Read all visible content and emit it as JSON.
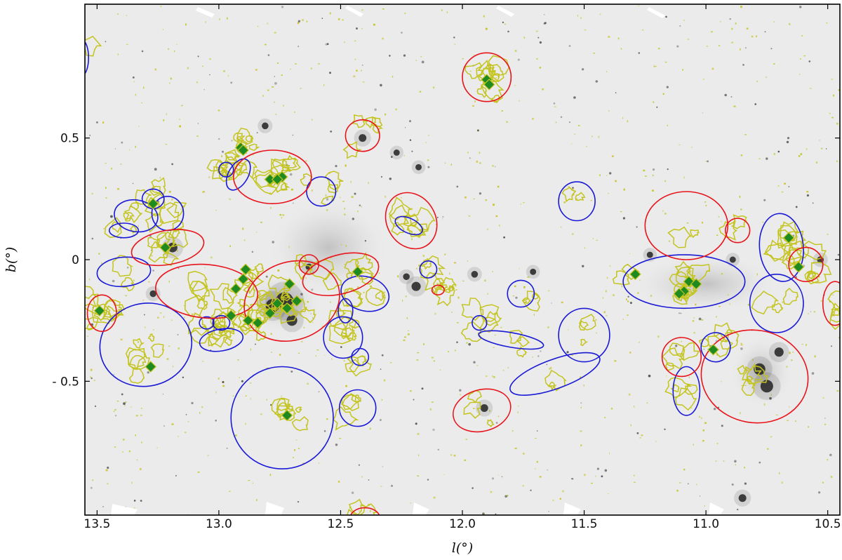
{
  "chart_data": {
    "type": "scatter",
    "xlabel": "l(°)",
    "ylabel": "b(°)",
    "xlim": [
      13.55,
      10.45
    ],
    "ylim": [
      -1.05,
      1.05
    ],
    "x_ticks": [
      "13.5",
      "13.0",
      "12.5",
      "12.0",
      "11.5",
      "11.0",
      "10.5"
    ],
    "x_tick_values": [
      13.5,
      13.0,
      12.5,
      12.0,
      11.5,
      11.0,
      10.5
    ],
    "y_ticks": [
      "0.5",
      "0",
      "- 0.5"
    ],
    "y_tick_values": [
      0.5,
      0.0,
      -0.5
    ],
    "colors": {
      "red_ellipse": "#e8141b",
      "blue_ellipse": "#1a1ad6",
      "contour": "#c4c420",
      "marker": "#1f8a1f",
      "background": "#ebebeb",
      "source": "#222222"
    },
    "red_ellipses": [
      {
        "l": 12.78,
        "b": 0.34,
        "a": 0.16,
        "c": 0.11,
        "angle": 0
      },
      {
        "l": 12.7,
        "b": -0.17,
        "a": 0.2,
        "c": 0.16,
        "angle": 20
      },
      {
        "l": 11.9,
        "b": 0.75,
        "a": 0.1,
        "c": 0.1,
        "angle": 0
      },
      {
        "l": 12.41,
        "b": 0.51,
        "a": 0.07,
        "c": 0.065,
        "angle": 0
      },
      {
        "l": 12.21,
        "b": 0.16,
        "a": 0.1,
        "c": 0.12,
        "angle": 30
      },
      {
        "l": 13.21,
        "b": 0.05,
        "a": 0.15,
        "c": 0.07,
        "angle": 10
      },
      {
        "l": 13.05,
        "b": -0.13,
        "a": 0.21,
        "c": 0.11,
        "angle": -5
      },
      {
        "l": 12.5,
        "b": -0.06,
        "a": 0.16,
        "c": 0.08,
        "angle": 15
      },
      {
        "l": 12.63,
        "b": -0.02,
        "a": 0.04,
        "c": 0.04,
        "angle": 0
      },
      {
        "l": 12.1,
        "b": -0.125,
        "a": 0.025,
        "c": 0.02,
        "angle": 0
      },
      {
        "l": 13.48,
        "b": -0.22,
        "a": 0.06,
        "c": 0.075,
        "angle": 0
      },
      {
        "l": 11.92,
        "b": -0.62,
        "a": 0.12,
        "c": 0.085,
        "angle": 15
      },
      {
        "l": 11.08,
        "b": 0.14,
        "a": 0.17,
        "c": 0.14,
        "angle": 0
      },
      {
        "l": 10.87,
        "b": 0.12,
        "a": 0.05,
        "c": 0.05,
        "angle": 0
      },
      {
        "l": 10.59,
        "b": -0.02,
        "a": 0.07,
        "c": 0.07,
        "angle": 0
      },
      {
        "l": 10.47,
        "b": -0.18,
        "a": 0.05,
        "c": 0.09,
        "angle": 0
      },
      {
        "l": 10.8,
        "b": -0.48,
        "a": 0.22,
        "c": 0.19,
        "angle": -10
      },
      {
        "l": 11.1,
        "b": -0.4,
        "a": 0.08,
        "c": 0.08,
        "angle": 0
      },
      {
        "l": 12.4,
        "b": -1.06,
        "a": 0.06,
        "c": 0.04,
        "angle": 0
      }
    ],
    "blue_ellipses": [
      {
        "l": 13.56,
        "b": 0.83,
        "a": 0.025,
        "c": 0.07,
        "angle": 0
      },
      {
        "l": 12.97,
        "b": 0.37,
        "a": 0.03,
        "c": 0.03,
        "angle": 0
      },
      {
        "l": 12.92,
        "b": 0.35,
        "a": 0.07,
        "c": 0.04,
        "angle": 60
      },
      {
        "l": 12.58,
        "b": 0.28,
        "a": 0.06,
        "c": 0.06,
        "angle": 0
      },
      {
        "l": 13.27,
        "b": 0.25,
        "a": 0.045,
        "c": 0.04,
        "angle": 0
      },
      {
        "l": 13.34,
        "b": 0.18,
        "a": 0.09,
        "c": 0.065,
        "angle": -10
      },
      {
        "l": 13.21,
        "b": 0.19,
        "a": 0.065,
        "c": 0.07,
        "angle": 0
      },
      {
        "l": 13.39,
        "b": 0.12,
        "a": 0.06,
        "c": 0.03,
        "angle": 0
      },
      {
        "l": 13.39,
        "b": -0.05,
        "a": 0.11,
        "c": 0.06,
        "angle": 5
      },
      {
        "l": 13.3,
        "b": -0.35,
        "a": 0.19,
        "c": 0.17,
        "angle": 15
      },
      {
        "l": 13.05,
        "b": -0.26,
        "a": 0.03,
        "c": 0.025,
        "angle": 0
      },
      {
        "l": 12.99,
        "b": -0.26,
        "a": 0.035,
        "c": 0.03,
        "angle": 0
      },
      {
        "l": 12.99,
        "b": -0.33,
        "a": 0.09,
        "c": 0.045,
        "angle": 10
      },
      {
        "l": 12.74,
        "b": -0.65,
        "a": 0.21,
        "c": 0.21,
        "angle": 0
      },
      {
        "l": 12.48,
        "b": -0.21,
        "a": 0.03,
        "c": 0.05,
        "angle": 0
      },
      {
        "l": 12.49,
        "b": -0.32,
        "a": 0.08,
        "c": 0.085,
        "angle": 0
      },
      {
        "l": 12.42,
        "b": -0.4,
        "a": 0.035,
        "c": 0.035,
        "angle": 0
      },
      {
        "l": 12.4,
        "b": -0.14,
        "a": 0.1,
        "c": 0.07,
        "angle": -15
      },
      {
        "l": 12.43,
        "b": -0.61,
        "a": 0.075,
        "c": 0.075,
        "angle": 0
      },
      {
        "l": 12.22,
        "b": 0.14,
        "a": 0.06,
        "c": 0.03,
        "angle": -25
      },
      {
        "l": 12.14,
        "b": -0.04,
        "a": 0.035,
        "c": 0.035,
        "angle": 0
      },
      {
        "l": 11.93,
        "b": -0.26,
        "a": 0.03,
        "c": 0.03,
        "angle": 0
      },
      {
        "l": 11.8,
        "b": -0.33,
        "a": 0.135,
        "c": 0.03,
        "angle": -10
      },
      {
        "l": 11.76,
        "b": -0.14,
        "a": 0.055,
        "c": 0.055,
        "angle": 0
      },
      {
        "l": 11.53,
        "b": 0.24,
        "a": 0.075,
        "c": 0.08,
        "angle": 0
      },
      {
        "l": 11.5,
        "b": -0.31,
        "a": 0.105,
        "c": 0.11,
        "angle": 0
      },
      {
        "l": 11.62,
        "b": -0.47,
        "a": 0.195,
        "c": 0.06,
        "angle": 20
      },
      {
        "l": 11.09,
        "b": -0.09,
        "a": 0.25,
        "c": 0.11,
        "angle": 0
      },
      {
        "l": 11.08,
        "b": -0.54,
        "a": 0.055,
        "c": 0.1,
        "angle": 0
      },
      {
        "l": 10.96,
        "b": -0.36,
        "a": 0.06,
        "c": 0.06,
        "angle": -20
      },
      {
        "l": 10.69,
        "b": 0.05,
        "a": 0.09,
        "c": 0.14,
        "angle": 5
      },
      {
        "l": 10.71,
        "b": -0.18,
        "a": 0.11,
        "c": 0.12,
        "angle": 0
      }
    ],
    "green_markers": [
      {
        "l": 11.9,
        "b": 0.74
      },
      {
        "l": 11.89,
        "b": 0.72
      },
      {
        "l": 12.91,
        "b": 0.46
      },
      {
        "l": 12.9,
        "b": 0.45
      },
      {
        "l": 12.79,
        "b": 0.33
      },
      {
        "l": 12.74,
        "b": 0.34
      },
      {
        "l": 12.76,
        "b": 0.33
      },
      {
        "l": 13.27,
        "b": 0.23
      },
      {
        "l": 13.22,
        "b": 0.05
      },
      {
        "l": 12.9,
        "b": -0.08
      },
      {
        "l": 12.89,
        "b": -0.04
      },
      {
        "l": 12.93,
        "b": -0.12
      },
      {
        "l": 12.95,
        "b": -0.23
      },
      {
        "l": 12.88,
        "b": -0.25
      },
      {
        "l": 12.84,
        "b": -0.26
      },
      {
        "l": 12.79,
        "b": -0.22
      },
      {
        "l": 12.76,
        "b": -0.18
      },
      {
        "l": 12.71,
        "b": -0.1
      },
      {
        "l": 12.72,
        "b": -0.2
      },
      {
        "l": 12.68,
        "b": -0.17
      },
      {
        "l": 12.43,
        "b": -0.05
      },
      {
        "l": 13.49,
        "b": -0.21
      },
      {
        "l": 13.28,
        "b": -0.44
      },
      {
        "l": 12.72,
        "b": -0.64
      },
      {
        "l": 11.29,
        "b": -0.06
      },
      {
        "l": 11.07,
        "b": -0.09
      },
      {
        "l": 11.04,
        "b": -0.1
      },
      {
        "l": 11.09,
        "b": -0.13
      },
      {
        "l": 11.11,
        "b": -0.14
      },
      {
        "l": 10.97,
        "b": -0.37
      },
      {
        "l": 10.66,
        "b": 0.09
      },
      {
        "l": 10.62,
        "b": -0.03
      }
    ],
    "point_sources": [
      {
        "l": 12.73,
        "b": -0.17,
        "size": 3.0
      },
      {
        "l": 12.78,
        "b": -0.19,
        "size": 2.2
      },
      {
        "l": 12.7,
        "b": -0.25,
        "size": 1.6
      },
      {
        "l": 13.19,
        "b": 0.05,
        "size": 1.4
      },
      {
        "l": 12.19,
        "b": -0.11,
        "size": 1.3
      },
      {
        "l": 10.78,
        "b": -0.45,
        "size": 1.8
      },
      {
        "l": 10.75,
        "b": -0.52,
        "size": 2.0
      },
      {
        "l": 10.7,
        "b": -0.38,
        "size": 1.3
      },
      {
        "l": 11.91,
        "b": -0.61,
        "size": 1.0
      },
      {
        "l": 12.41,
        "b": 0.5,
        "size": 1.0
      },
      {
        "l": 10.85,
        "b": -0.98,
        "size": 1.0
      },
      {
        "l": 12.81,
        "b": 0.55,
        "size": 0.8
      },
      {
        "l": 12.23,
        "b": -0.07,
        "size": 0.8
      },
      {
        "l": 11.95,
        "b": -0.06,
        "size": 0.8
      },
      {
        "l": 12.63,
        "b": -0.03,
        "size": 0.8
      },
      {
        "l": 13.27,
        "b": -0.14,
        "size": 0.8
      },
      {
        "l": 12.27,
        "b": 0.44,
        "size": 0.7
      },
      {
        "l": 12.18,
        "b": 0.38,
        "size": 0.7
      },
      {
        "l": 11.71,
        "b": -0.05,
        "size": 0.7
      },
      {
        "l": 11.23,
        "b": 0.02,
        "size": 0.7
      },
      {
        "l": 10.89,
        "b": 0.0,
        "size": 0.7
      },
      {
        "l": 10.53,
        "b": 0.0,
        "size": 0.8
      }
    ]
  }
}
